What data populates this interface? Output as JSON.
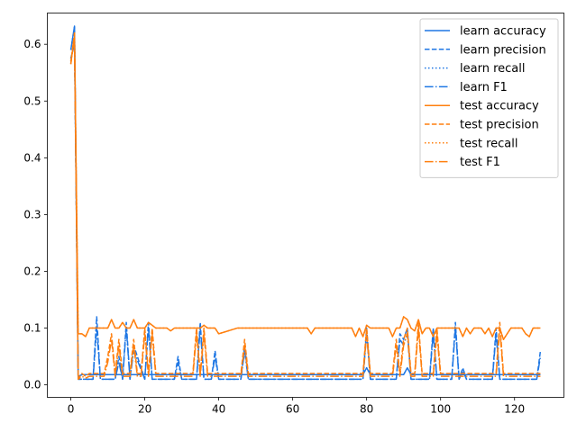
{
  "chart_data": {
    "type": "line",
    "title": "",
    "xlabel": "",
    "ylabel": "",
    "xlim": [
      -6.35,
      133.35
    ],
    "ylim": [
      -0.022,
      0.655
    ],
    "xticks": [
      0,
      20,
      40,
      60,
      80,
      100,
      120
    ],
    "yticks": [
      0.0,
      0.1,
      0.2,
      0.3,
      0.4,
      0.5,
      0.6
    ],
    "legend_position": "top-right",
    "grid": false,
    "series": [
      {
        "name": "learn accuracy",
        "color": "#1f77e4",
        "linestyle": "solid",
        "x": [
          0,
          1,
          2,
          3,
          10,
          20,
          30,
          40,
          50,
          60,
          70,
          79,
          80,
          81,
          90,
          91,
          92,
          100,
          110,
          120,
          127
        ],
        "y": [
          0.59,
          0.632,
          0.015,
          0.018,
          0.018,
          0.018,
          0.018,
          0.018,
          0.018,
          0.018,
          0.018,
          0.018,
          0.03,
          0.018,
          0.018,
          0.03,
          0.018,
          0.018,
          0.018,
          0.018,
          0.018
        ]
      },
      {
        "name": "learn precision",
        "color": "#1f77e4",
        "linestyle": "dashed",
        "x": [
          0,
          1,
          2,
          3,
          6,
          7,
          8,
          9,
          12,
          13,
          14,
          15,
          16,
          17,
          20,
          21,
          22,
          28,
          29,
          30,
          31,
          34,
          35,
          36,
          38,
          39,
          40,
          46,
          47,
          48,
          60,
          79,
          80,
          81,
          88,
          89,
          90,
          91,
          92,
          97,
          98,
          99,
          100,
          103,
          104,
          105,
          106,
          107,
          114,
          115,
          116,
          117,
          124,
          126,
          127
        ],
        "y": [
          0.575,
          0.6,
          0.01,
          0.01,
          0.01,
          0.12,
          0.01,
          0.01,
          0.01,
          0.05,
          0.01,
          0.11,
          0.01,
          0.07,
          0.01,
          0.11,
          0.01,
          0.01,
          0.05,
          0.01,
          0.01,
          0.01,
          0.11,
          0.01,
          0.01,
          0.06,
          0.01,
          0.01,
          0.07,
          0.01,
          0.01,
          0.01,
          0.1,
          0.01,
          0.01,
          0.09,
          0.08,
          0.1,
          0.01,
          0.01,
          0.1,
          0.01,
          0.01,
          0.01,
          0.11,
          0.01,
          0.03,
          0.01,
          0.01,
          0.1,
          0.01,
          0.01,
          0.01,
          0.01,
          0.06
        ]
      },
      {
        "name": "learn recall",
        "color": "#1f77e4",
        "linestyle": "dotted",
        "x": [
          0,
          1,
          2,
          3,
          10,
          20,
          30,
          40,
          50,
          60,
          70,
          79,
          80,
          81,
          90,
          91,
          92,
          100,
          110,
          120,
          127
        ],
        "y": [
          0.59,
          0.632,
          0.015,
          0.018,
          0.018,
          0.018,
          0.018,
          0.018,
          0.018,
          0.018,
          0.018,
          0.018,
          0.03,
          0.018,
          0.018,
          0.03,
          0.018,
          0.018,
          0.018,
          0.018,
          0.018
        ]
      },
      {
        "name": "learn F1",
        "color": "#1f77e4",
        "linestyle": "dashdot",
        "x": [
          0,
          1,
          2,
          3,
          6,
          7,
          8,
          9,
          12,
          13,
          14,
          15,
          16,
          17,
          20,
          21,
          22,
          28,
          29,
          30,
          31,
          34,
          35,
          36,
          38,
          39,
          40,
          46,
          47,
          48,
          60,
          79,
          80,
          81,
          88,
          89,
          90,
          91,
          92,
          97,
          98,
          99,
          100,
          103,
          104,
          105,
          106,
          107,
          114,
          115,
          116,
          117,
          124,
          126,
          127
        ],
        "y": [
          0.575,
          0.6,
          0.01,
          0.01,
          0.01,
          0.1,
          0.01,
          0.01,
          0.01,
          0.04,
          0.01,
          0.1,
          0.01,
          0.06,
          0.01,
          0.1,
          0.01,
          0.01,
          0.04,
          0.01,
          0.01,
          0.01,
          0.1,
          0.01,
          0.01,
          0.05,
          0.01,
          0.01,
          0.06,
          0.01,
          0.01,
          0.01,
          0.09,
          0.01,
          0.01,
          0.08,
          0.07,
          0.09,
          0.01,
          0.01,
          0.09,
          0.01,
          0.01,
          0.01,
          0.1,
          0.01,
          0.025,
          0.01,
          0.01,
          0.09,
          0.01,
          0.01,
          0.01,
          0.01,
          0.05
        ]
      },
      {
        "name": "test accuracy",
        "color": "#ff7f0e",
        "linestyle": "solid",
        "x": [
          0,
          1,
          2,
          3,
          4,
          5,
          6,
          7,
          8,
          9,
          10,
          11,
          12,
          13,
          14,
          15,
          16,
          17,
          18,
          19,
          20,
          21,
          22,
          23,
          24,
          25,
          26,
          27,
          28,
          29,
          30,
          31,
          32,
          33,
          34,
          35,
          36,
          37,
          38,
          39,
          40,
          45,
          50,
          55,
          60,
          64,
          65,
          66,
          70,
          75,
          76,
          77,
          78,
          79,
          80,
          81,
          85,
          86,
          87,
          88,
          89,
          90,
          91,
          92,
          93,
          94,
          95,
          96,
          97,
          98,
          99,
          100,
          101,
          102,
          103,
          104,
          105,
          106,
          107,
          108,
          109,
          110,
          111,
          112,
          113,
          114,
          115,
          116,
          117,
          118,
          119,
          120,
          121,
          122,
          123,
          124,
          125,
          126,
          127
        ],
        "y": [
          0.57,
          0.61,
          0.09,
          0.09,
          0.085,
          0.1,
          0.1,
          0.1,
          0.1,
          0.1,
          0.1,
          0.115,
          0.1,
          0.1,
          0.11,
          0.1,
          0.1,
          0.115,
          0.1,
          0.1,
          0.1,
          0.11,
          0.105,
          0.1,
          0.1,
          0.1,
          0.1,
          0.095,
          0.1,
          0.1,
          0.1,
          0.1,
          0.1,
          0.1,
          0.1,
          0.1,
          0.105,
          0.1,
          0.1,
          0.1,
          0.09,
          0.1,
          0.1,
          0.1,
          0.1,
          0.1,
          0.09,
          0.1,
          0.1,
          0.1,
          0.1,
          0.085,
          0.1,
          0.085,
          0.105,
          0.1,
          0.1,
          0.1,
          0.085,
          0.1,
          0.1,
          0.12,
          0.115,
          0.1,
          0.095,
          0.115,
          0.09,
          0.1,
          0.1,
          0.085,
          0.1,
          0.1,
          0.1,
          0.1,
          0.1,
          0.1,
          0.1,
          0.085,
          0.1,
          0.09,
          0.1,
          0.1,
          0.1,
          0.09,
          0.1,
          0.085,
          0.1,
          0.1,
          0.08,
          0.09,
          0.1,
          0.1,
          0.1,
          0.1,
          0.09,
          0.085,
          0.1,
          0.1,
          0.1
        ]
      },
      {
        "name": "test precision",
        "color": "#ff7f0e",
        "linestyle": "dashed",
        "x": [
          0,
          1,
          2,
          3,
          4,
          5,
          8,
          9,
          10,
          11,
          12,
          13,
          14,
          15,
          16,
          17,
          18,
          19,
          20,
          21,
          22,
          23,
          30,
          33,
          34,
          35,
          36,
          37,
          38,
          46,
          47,
          48,
          78,
          79,
          80,
          81,
          86,
          87,
          88,
          89,
          90,
          91,
          92,
          93,
          94,
          95,
          96,
          98,
          99,
          100,
          101,
          108,
          115,
          116,
          117,
          118,
          127
        ],
        "y": [
          0.565,
          0.62,
          0.01,
          0.02,
          0.015,
          0.02,
          0.02,
          0.02,
          0.05,
          0.09,
          0.02,
          0.08,
          0.02,
          0.02,
          0.02,
          0.08,
          0.02,
          0.02,
          0.1,
          0.02,
          0.1,
          0.02,
          0.02,
          0.02,
          0.1,
          0.02,
          0.1,
          0.02,
          0.02,
          0.02,
          0.08,
          0.02,
          0.02,
          0.02,
          0.1,
          0.02,
          0.02,
          0.02,
          0.08,
          0.02,
          0.08,
          0.1,
          0.02,
          0.02,
          0.11,
          0.02,
          0.02,
          0.02,
          0.1,
          0.02,
          0.02,
          0.02,
          0.02,
          0.11,
          0.02,
          0.02,
          0.02
        ]
      },
      {
        "name": "test recall",
        "color": "#ff7f0e",
        "linestyle": "dotted",
        "x": [
          0,
          1,
          2,
          3,
          4,
          5,
          6,
          7,
          8,
          9,
          10,
          11,
          12,
          13,
          14,
          15,
          16,
          17,
          18,
          19,
          20,
          21,
          22,
          23,
          24,
          25,
          26,
          27,
          28,
          29,
          30,
          31,
          32,
          33,
          34,
          35,
          36,
          37,
          38,
          39,
          40,
          45,
          50,
          55,
          60,
          64,
          65,
          66,
          70,
          75,
          76,
          77,
          78,
          79,
          80,
          81,
          85,
          86,
          87,
          88,
          89,
          90,
          91,
          92,
          93,
          94,
          95,
          96,
          97,
          98,
          99,
          100,
          101,
          102,
          103,
          104,
          105,
          106,
          107,
          108,
          109,
          110,
          111,
          112,
          113,
          114,
          115,
          116,
          117,
          118,
          119,
          120,
          121,
          122,
          123,
          124,
          125,
          126,
          127
        ],
        "y": [
          0.57,
          0.61,
          0.09,
          0.09,
          0.085,
          0.1,
          0.1,
          0.1,
          0.1,
          0.1,
          0.1,
          0.115,
          0.1,
          0.1,
          0.11,
          0.1,
          0.1,
          0.115,
          0.1,
          0.1,
          0.1,
          0.11,
          0.105,
          0.1,
          0.1,
          0.1,
          0.1,
          0.095,
          0.1,
          0.1,
          0.1,
          0.1,
          0.1,
          0.1,
          0.1,
          0.1,
          0.105,
          0.1,
          0.1,
          0.1,
          0.09,
          0.1,
          0.1,
          0.1,
          0.1,
          0.1,
          0.09,
          0.1,
          0.1,
          0.1,
          0.1,
          0.085,
          0.1,
          0.085,
          0.105,
          0.1,
          0.1,
          0.1,
          0.085,
          0.1,
          0.1,
          0.12,
          0.115,
          0.1,
          0.095,
          0.115,
          0.09,
          0.1,
          0.1,
          0.085,
          0.1,
          0.1,
          0.1,
          0.1,
          0.1,
          0.1,
          0.1,
          0.085,
          0.1,
          0.09,
          0.1,
          0.1,
          0.1,
          0.09,
          0.1,
          0.085,
          0.1,
          0.1,
          0.08,
          0.09,
          0.1,
          0.1,
          0.1,
          0.1,
          0.09,
          0.085,
          0.1,
          0.1,
          0.1
        ]
      },
      {
        "name": "test F1",
        "color": "#ff7f0e",
        "linestyle": "dashdot",
        "x": [
          0,
          1,
          2,
          3,
          4,
          5,
          8,
          9,
          10,
          11,
          12,
          13,
          14,
          15,
          16,
          17,
          18,
          19,
          20,
          21,
          22,
          23,
          30,
          33,
          34,
          35,
          36,
          37,
          38,
          46,
          47,
          48,
          78,
          79,
          80,
          81,
          86,
          87,
          88,
          89,
          90,
          91,
          92,
          93,
          94,
          95,
          96,
          98,
          99,
          100,
          101,
          108,
          115,
          116,
          117,
          118,
          127
        ],
        "y": [
          0.565,
          0.62,
          0.01,
          0.015,
          0.012,
          0.015,
          0.015,
          0.015,
          0.04,
          0.08,
          0.015,
          0.07,
          0.015,
          0.015,
          0.015,
          0.07,
          0.015,
          0.015,
          0.09,
          0.015,
          0.09,
          0.015,
          0.015,
          0.015,
          0.09,
          0.015,
          0.09,
          0.015,
          0.015,
          0.015,
          0.07,
          0.015,
          0.015,
          0.015,
          0.09,
          0.015,
          0.015,
          0.015,
          0.07,
          0.015,
          0.07,
          0.09,
          0.015,
          0.015,
          0.1,
          0.015,
          0.015,
          0.015,
          0.09,
          0.015,
          0.015,
          0.015,
          0.015,
          0.1,
          0.015,
          0.015,
          0.015
        ]
      }
    ]
  }
}
